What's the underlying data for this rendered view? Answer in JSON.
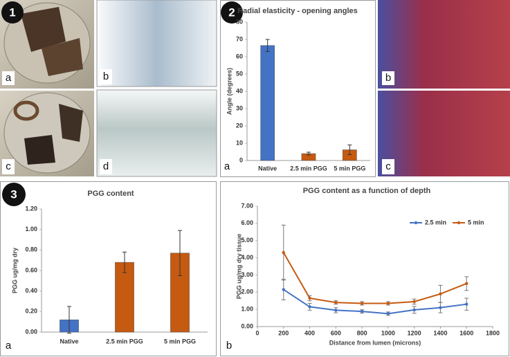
{
  "labels": {
    "panel1": {
      "number": "1",
      "photos": [
        "a",
        "b",
        "c",
        "d"
      ]
    },
    "panel2": {
      "number": "2",
      "chart_letter": "a",
      "photos": [
        "b",
        "c"
      ]
    },
    "panel3": {
      "number": "3",
      "chart_letter": "a"
    },
    "panel4": {
      "chart_letter": "b"
    }
  },
  "chart_data": [
    {
      "type": "bar",
      "title": "Radial elasticity - opening angles",
      "y_label": "Angle (degrees)",
      "categories": [
        "Native",
        "2.5 min PGG",
        "5 min PGG"
      ],
      "values": [
        66.5,
        4,
        6.2
      ],
      "errors": [
        3.5,
        0.8,
        2.8
      ],
      "colors": [
        "#4472c4",
        "#c55a11",
        "#c55a11"
      ],
      "ylim": [
        0,
        80
      ],
      "yticks": [
        0,
        10,
        20,
        30,
        40,
        50,
        60,
        70,
        80
      ],
      "grid": false
    },
    {
      "type": "bar",
      "title": "PGG content",
      "y_label": "PGG ug/mg dry",
      "categories": [
        "Native",
        "2.5 min PGG",
        "5 min PGG"
      ],
      "values": [
        0.12,
        0.68,
        0.77
      ],
      "errors": [
        0.13,
        0.1,
        0.22
      ],
      "colors": [
        "#4472c4",
        "#c55a11",
        "#c55a11"
      ],
      "ylim": [
        0,
        1.2
      ],
      "yticks": [
        {
          "value": 0,
          "label": "0.00"
        },
        {
          "value": 0.2,
          "label": "0.20"
        },
        {
          "value": 0.4,
          "label": "0.40"
        },
        {
          "value": 0.6,
          "label": "0.60"
        },
        {
          "value": 0.8,
          "label": "0.80"
        },
        {
          "value": 1,
          "label": "1.00"
        },
        {
          "value": 1.2,
          "label": "1.20"
        }
      ],
      "grid": false
    },
    {
      "type": "line",
      "title": "PGG content as a function of depth",
      "y_label": "PGG ug/mg dry tissue",
      "x_label": "Distance from lumen (microns)",
      "x": [
        200,
        400,
        600,
        800,
        1000,
        1200,
        1400,
        1600
      ],
      "series": [
        {
          "name": "2.5 min",
          "color": "#4472c4",
          "values": [
            2.15,
            1.15,
            0.95,
            0.88,
            0.75,
            0.97,
            1.1,
            1.3
          ],
          "errors": [
            0.6,
            0.2,
            0.15,
            0.1,
            0.1,
            0.2,
            0.3,
            0.35
          ]
        },
        {
          "name": "5 min",
          "color": "#c55a11",
          "values": [
            4.3,
            1.65,
            1.4,
            1.35,
            1.35,
            1.45,
            1.9,
            2.5
          ],
          "errors": [
            1.6,
            0.15,
            0.1,
            0.1,
            0.1,
            0.15,
            0.5,
            0.4
          ]
        }
      ],
      "xlim": [
        0,
        1800
      ],
      "xticks": [
        0,
        200,
        400,
        600,
        800,
        1000,
        1200,
        1400,
        1600,
        1800
      ],
      "ylim": [
        0,
        7
      ],
      "yticks": [
        {
          "value": 0,
          "label": "0.00"
        },
        {
          "value": 1,
          "label": "1.00"
        },
        {
          "value": 2,
          "label": "2.00"
        },
        {
          "value": 3,
          "label": "3.00"
        },
        {
          "value": 4,
          "label": "4.00"
        },
        {
          "value": 5,
          "label": "5.00"
        },
        {
          "value": 6,
          "label": "6.00"
        },
        {
          "value": 7,
          "label": "7.00"
        }
      ],
      "legend": "upper right",
      "grid": false
    }
  ]
}
